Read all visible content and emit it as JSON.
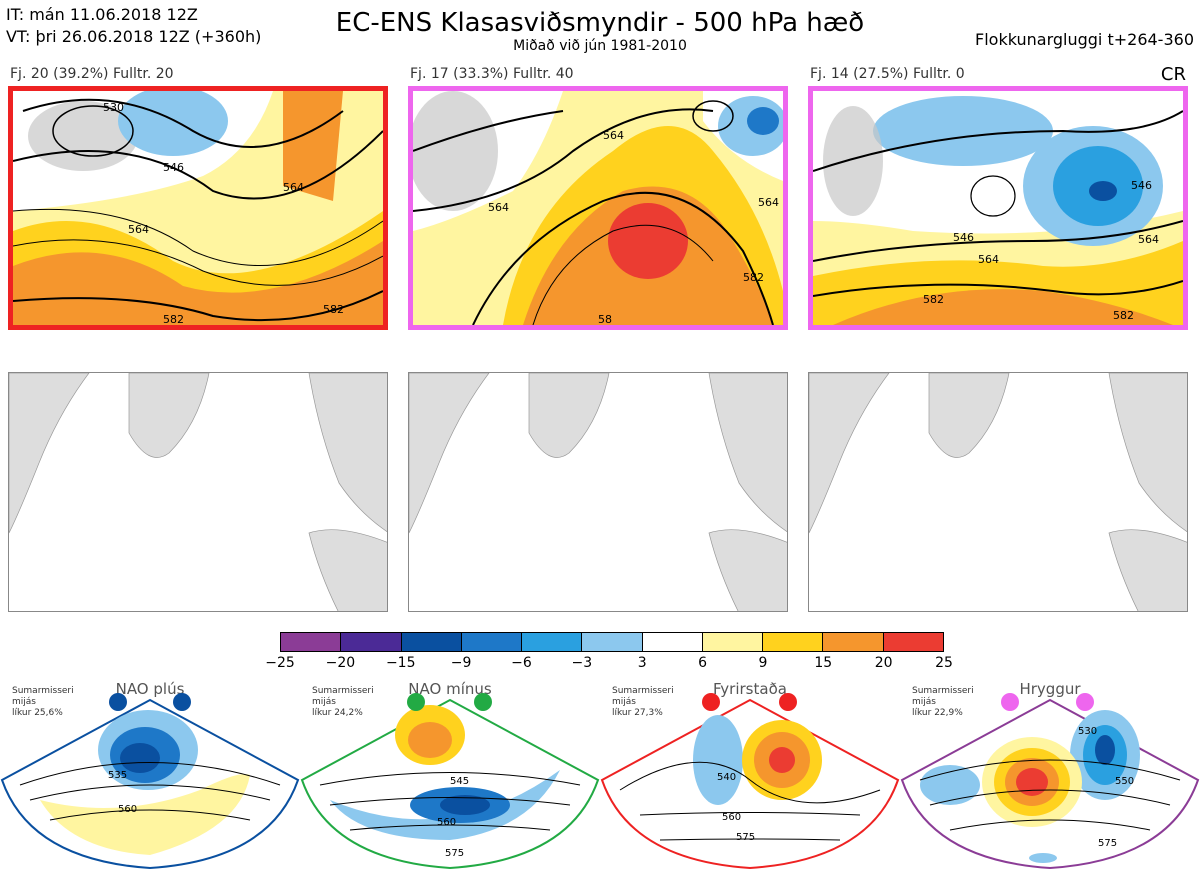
{
  "header": {
    "it_line": "IT: mán 11.06.2018 12Z",
    "vt_line": "VT: þri 26.06.2018 12Z  (+360h)",
    "title": "EC-ENS Klasasviðsmyndir - 500 hPa hæð",
    "subtitle": "Miðað við jún 1981-2010",
    "window": "Flokkunargluggi t+264-360",
    "code": "CR"
  },
  "clusters": [
    {
      "label": "Fj. 20 (39.2%)   Fulltr. 20",
      "border_color": "#ee2222",
      "contours": [
        "530",
        "546",
        "564",
        "564",
        "582",
        "582"
      ]
    },
    {
      "label": "Fj. 17 (33.3%)   Fulltr. 40",
      "border_color": "#ee66ee",
      "contours": [
        "564",
        "564",
        "564",
        "582",
        "58"
      ]
    },
    {
      "label": "Fj. 14 (27.5%)   Fulltr. 0",
      "border_color": "#ee66ee",
      "contours": [
        "546",
        "546",
        "564",
        "564",
        "582",
        "582"
      ]
    }
  ],
  "colorbar": {
    "colors": [
      "#8b3c96",
      "#4b2a96",
      "#0a50a0",
      "#1e78c8",
      "#2aa0e0",
      "#8cc8ee",
      "#ffffff",
      "#fff5a0",
      "#ffd21e",
      "#f5962d",
      "#eb3c32",
      "#b40f14"
    ],
    "ticks": [
      "−25",
      "−20",
      "−15",
      "−9",
      "−6",
      "−3",
      "3",
      "6",
      "9",
      "15",
      "20",
      "25"
    ]
  },
  "regimes": [
    {
      "name": "NAO plús",
      "note_lines": [
        "Sumarmisseri",
        "mijás",
        "líkur 25,6%"
      ],
      "color": "#0a50a0",
      "contours": [
        "535",
        "560"
      ]
    },
    {
      "name": "NAO mínus",
      "note_lines": [
        "Sumarmisseri",
        "mijás",
        "líkur 24,2%"
      ],
      "color": "#22aa44",
      "contours": [
        "545",
        "560",
        "575"
      ]
    },
    {
      "name": "Fyrirstaða",
      "note_lines": [
        "Sumarmisseri",
        "mijás",
        "líkur 27,3%"
      ],
      "color": "#ee2222",
      "contours": [
        "540",
        "560",
        "575"
      ]
    },
    {
      "name": "Hryggur",
      "note_lines": [
        "Sumarmisseri",
        "mijás",
        "líkur 22,9%"
      ],
      "color": "#ee66ee",
      "contours": [
        "530",
        "550",
        "575"
      ]
    }
  ]
}
